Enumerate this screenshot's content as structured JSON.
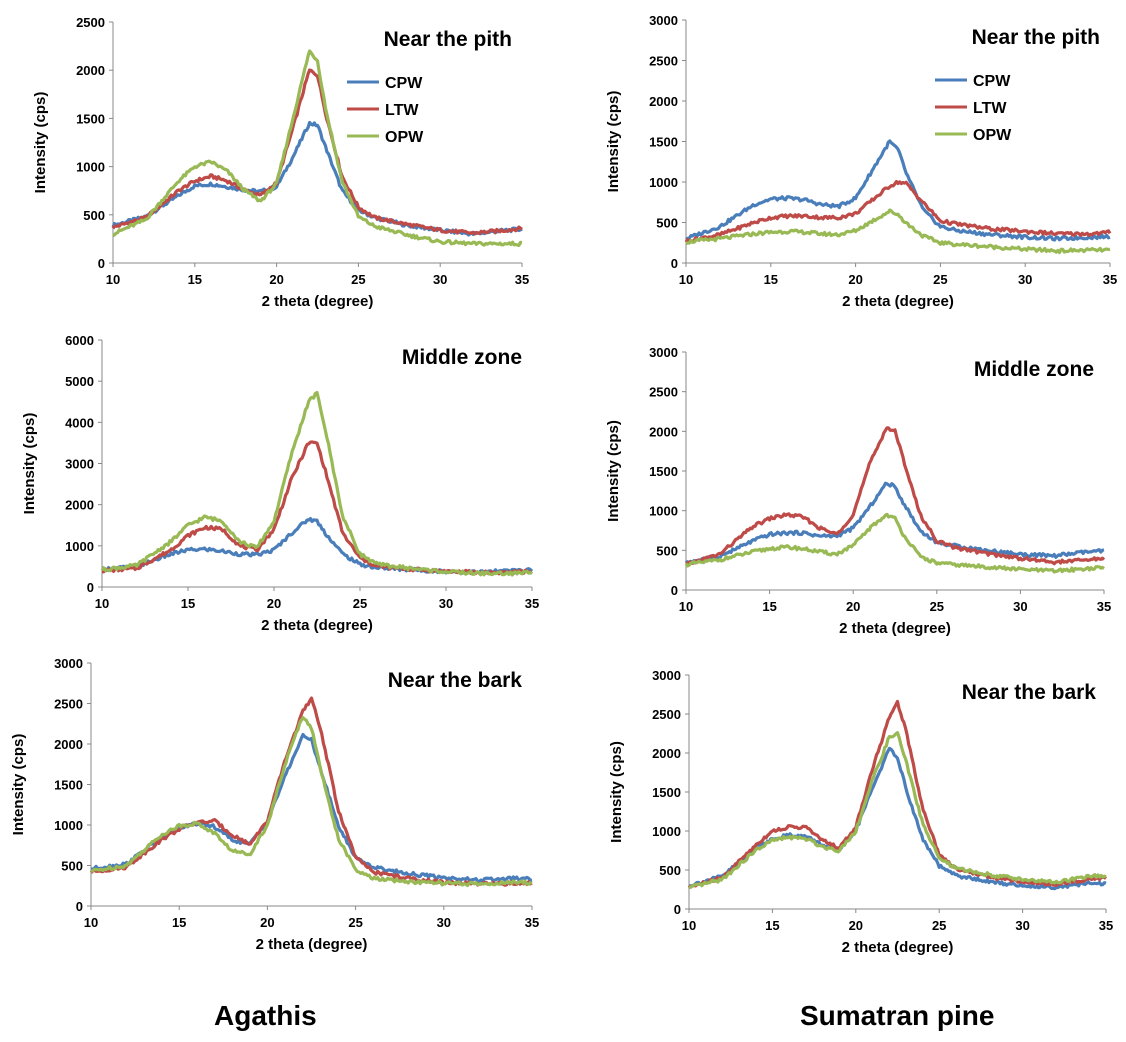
{
  "column_captions": [
    "Agathis",
    "Sumatran pine"
  ],
  "colors": {
    "CPW": "#4a7ebb",
    "LTW": "#be4b48",
    "OPW": "#98b954"
  },
  "chart_data": [
    {
      "type": "line",
      "title": "Near the pith",
      "xlabel": "2 theta (degree)",
      "ylabel": "Intensity (cps)",
      "xlim": [
        10,
        35
      ],
      "ylim": [
        0,
        2500
      ],
      "xticks": [
        10,
        15,
        20,
        25,
        30,
        35
      ],
      "yticks": [
        0,
        500,
        1000,
        1500,
        2000,
        2500
      ],
      "legend": "top-right",
      "x": [
        10,
        12,
        14,
        15,
        16,
        17,
        18,
        19,
        20,
        21,
        22,
        22.5,
        23,
        24,
        25,
        26,
        28,
        30,
        32,
        34,
        35
      ],
      "series": [
        {
          "name": "CPW",
          "values": [
            390,
            480,
            700,
            800,
            820,
            790,
            760,
            740,
            790,
            1100,
            1450,
            1430,
            1200,
            750,
            550,
            470,
            390,
            340,
            300,
            340,
            350
          ]
        },
        {
          "name": "LTW",
          "values": [
            370,
            470,
            750,
            850,
            900,
            850,
            760,
            700,
            830,
            1400,
            2000,
            1950,
            1550,
            900,
            580,
            470,
            400,
            340,
            310,
            340,
            360
          ]
        },
        {
          "name": "OPW",
          "values": [
            300,
            450,
            850,
            1000,
            1050,
            950,
            760,
            640,
            820,
            1500,
            2200,
            2100,
            1600,
            850,
            480,
            380,
            290,
            220,
            200,
            200,
            200
          ]
        }
      ]
    },
    {
      "type": "line",
      "title": "Near the pith",
      "xlabel": "2 theta (degree)",
      "ylabel": "Intensity (cps)",
      "xlim": [
        10,
        35
      ],
      "ylim": [
        0,
        3000
      ],
      "xticks": [
        10,
        15,
        20,
        25,
        30,
        35
      ],
      "yticks": [
        0,
        500,
        1000,
        1500,
        2000,
        2500,
        3000
      ],
      "legend": "top-right",
      "x": [
        10,
        12,
        14,
        15,
        16,
        17,
        18,
        19,
        20,
        21,
        22,
        22.5,
        23,
        24,
        25,
        26,
        28,
        30,
        32,
        34,
        35
      ],
      "series": [
        {
          "name": "CPW",
          "values": [
            300,
            450,
            720,
            790,
            800,
            780,
            720,
            700,
            800,
            1150,
            1500,
            1400,
            1100,
            650,
            450,
            400,
            350,
            320,
            300,
            320,
            330
          ]
        },
        {
          "name": "LTW",
          "values": [
            270,
            350,
            500,
            560,
            580,
            580,
            560,
            560,
            610,
            780,
            950,
            1000,
            980,
            740,
            520,
            480,
            420,
            390,
            360,
            360,
            380
          ]
        },
        {
          "name": "OPW",
          "values": [
            260,
            300,
            360,
            380,
            390,
            380,
            360,
            350,
            400,
            520,
            640,
            600,
            490,
            330,
            250,
            230,
            200,
            170,
            150,
            160,
            160
          ]
        }
      ]
    },
    {
      "type": "line",
      "title": "Middle zone",
      "xlabel": "2 theta (degree)",
      "ylabel": "Intensity (cps)",
      "xlim": [
        10,
        35
      ],
      "ylim": [
        0,
        6000
      ],
      "xticks": [
        10,
        15,
        20,
        25,
        30,
        35
      ],
      "yticks": [
        0,
        1000,
        2000,
        3000,
        4000,
        5000,
        6000
      ],
      "legend": "none",
      "x": [
        10,
        12,
        14,
        15,
        16,
        17,
        18,
        19,
        20,
        21,
        22,
        22.5,
        23,
        24,
        25,
        26,
        28,
        30,
        32,
        34,
        35
      ],
      "series": [
        {
          "name": "CPW",
          "values": [
            430,
            500,
            800,
            900,
            920,
            870,
            800,
            780,
            900,
            1300,
            1650,
            1600,
            1300,
            800,
            550,
            470,
            420,
            380,
            360,
            400,
            420
          ]
        },
        {
          "name": "LTW",
          "values": [
            400,
            450,
            900,
            1250,
            1450,
            1400,
            1000,
            900,
            1400,
            2600,
            3500,
            3500,
            2800,
            1300,
            700,
            500,
            430,
            380,
            350,
            360,
            380
          ]
        },
        {
          "name": "OPW",
          "values": [
            420,
            520,
            1100,
            1500,
            1700,
            1600,
            1100,
            950,
            1600,
            3200,
            4500,
            4700,
            3800,
            1700,
            800,
            550,
            450,
            370,
            330,
            330,
            360
          ]
        }
      ]
    },
    {
      "type": "line",
      "title": "Middle zone",
      "xlabel": "2 theta (degree)",
      "ylabel": "Intensity (cps)",
      "xlim": [
        10,
        35
      ],
      "ylim": [
        0,
        3000
      ],
      "xticks": [
        10,
        15,
        20,
        25,
        30,
        35
      ],
      "yticks": [
        0,
        500,
        1000,
        1500,
        2000,
        2500,
        3000
      ],
      "legend": "none",
      "x": [
        10,
        12,
        14,
        15,
        16,
        17,
        18,
        19,
        20,
        21,
        22,
        22.5,
        23,
        24,
        25,
        26,
        28,
        30,
        32,
        34,
        35
      ],
      "series": [
        {
          "name": "CPW",
          "values": [
            350,
            420,
            620,
            700,
            720,
            720,
            680,
            680,
            780,
            1050,
            1350,
            1300,
            1100,
            750,
            600,
            560,
            500,
            450,
            430,
            480,
            490
          ]
        },
        {
          "name": "LTW",
          "values": [
            320,
            450,
            800,
            900,
            950,
            920,
            780,
            700,
            950,
            1600,
            2050,
            2000,
            1650,
            950,
            620,
            540,
            460,
            400,
            350,
            380,
            400
          ]
        },
        {
          "name": "OPW",
          "values": [
            320,
            380,
            480,
            520,
            540,
            520,
            480,
            450,
            560,
            780,
            950,
            900,
            700,
            420,
            340,
            320,
            290,
            260,
            240,
            270,
            280
          ]
        }
      ]
    },
    {
      "type": "line",
      "title": "Near the bark",
      "xlabel": "2 theta (degree)",
      "ylabel": "Intensity (cps)",
      "xlim": [
        10,
        35
      ],
      "ylim": [
        0,
        3000
      ],
      "xticks": [
        10,
        15,
        20,
        25,
        30,
        35
      ],
      "yticks": [
        0,
        500,
        1000,
        1500,
        2000,
        2500,
        3000
      ],
      "legend": "none",
      "x": [
        10,
        12,
        14,
        15,
        16,
        17,
        18,
        19,
        20,
        21,
        22,
        22.5,
        23,
        24,
        25,
        26,
        28,
        30,
        32,
        34,
        35
      ],
      "series": [
        {
          "name": "CPW",
          "values": [
            460,
            520,
            850,
            960,
            1020,
            980,
            820,
            760,
            1050,
            1600,
            2100,
            2050,
            1700,
            1000,
            600,
            480,
            400,
            350,
            320,
            340,
            330
          ]
        },
        {
          "name": "LTW",
          "values": [
            420,
            480,
            820,
            950,
            1030,
            1050,
            880,
            760,
            1050,
            1800,
            2400,
            2550,
            2200,
            1200,
            600,
            420,
            340,
            290,
            270,
            280,
            280
          ]
        },
        {
          "name": "OPW",
          "values": [
            430,
            500,
            880,
            990,
            1020,
            900,
            680,
            640,
            1000,
            1750,
            2350,
            2200,
            1700,
            850,
            440,
            340,
            300,
            280,
            270,
            290,
            290
          ]
        }
      ]
    },
    {
      "type": "line",
      "title": "Near the bark",
      "xlabel": "2 theta (degree)",
      "ylabel": "Intensity (cps)",
      "xlim": [
        10,
        35
      ],
      "ylim": [
        0,
        3000
      ],
      "xticks": [
        10,
        15,
        20,
        25,
        30,
        35
      ],
      "yticks": [
        0,
        500,
        1000,
        1500,
        2000,
        2500,
        3000
      ],
      "legend": "none",
      "x": [
        10,
        12,
        14,
        15,
        16,
        17,
        18,
        19,
        20,
        21,
        22,
        22.5,
        23,
        24,
        25,
        26,
        28,
        30,
        32,
        34,
        35
      ],
      "series": [
        {
          "name": "CPW",
          "values": [
            300,
            420,
            780,
            900,
            950,
            930,
            820,
            760,
            1000,
            1550,
            2050,
            1950,
            1550,
            900,
            550,
            430,
            350,
            300,
            280,
            330,
            320
          ]
        },
        {
          "name": "LTW",
          "values": [
            280,
            400,
            820,
            1000,
            1050,
            1050,
            880,
            780,
            1050,
            1800,
            2450,
            2650,
            2300,
            1300,
            700,
            520,
            410,
            350,
            320,
            380,
            400
          ]
        },
        {
          "name": "OPW",
          "values": [
            270,
            380,
            750,
            880,
            920,
            900,
            800,
            750,
            1000,
            1650,
            2200,
            2250,
            1900,
            1100,
            650,
            520,
            440,
            380,
            340,
            420,
            420
          ]
        }
      ]
    }
  ]
}
